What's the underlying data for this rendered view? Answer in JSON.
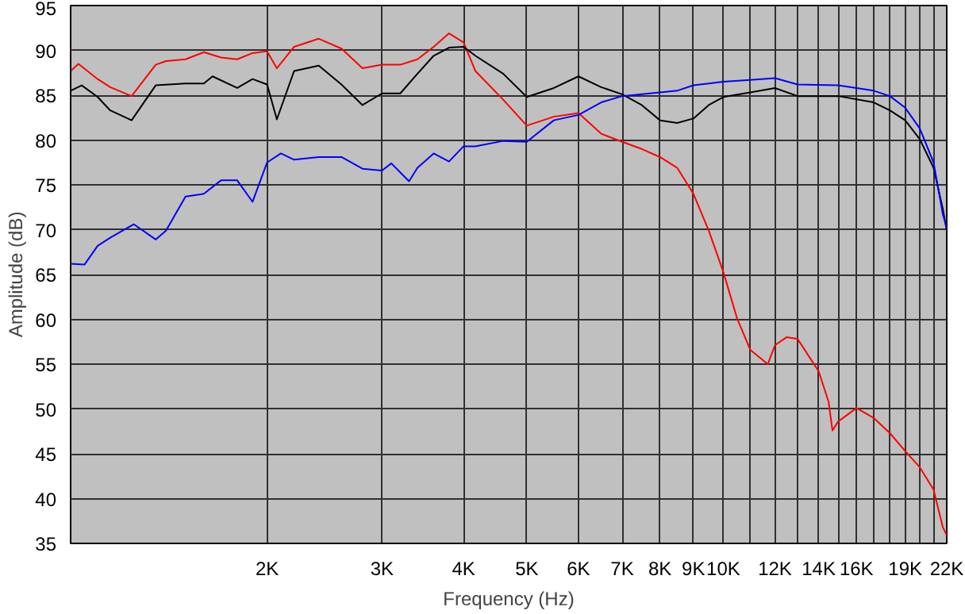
{
  "chart_data": {
    "type": "line",
    "xlabel": "Frequency (Hz)",
    "ylabel": "Amplitude (dB)",
    "log": "x",
    "xlim": [
      1000,
      22000
    ],
    "ylim": [
      35,
      95
    ],
    "xticks": [
      {
        "value": 2000,
        "label": "2K"
      },
      {
        "value": 3000,
        "label": "3K"
      },
      {
        "value": 4000,
        "label": "4K"
      },
      {
        "value": 5000,
        "label": "5K"
      },
      {
        "value": 6000,
        "label": "6K"
      },
      {
        "value": 7000,
        "label": "7K"
      },
      {
        "value": 8000,
        "label": "8K"
      },
      {
        "value": 9000,
        "label": "9K"
      },
      {
        "value": 10000,
        "label": "10K"
      },
      {
        "value": 11000,
        "label": null
      },
      {
        "value": 12000,
        "label": "12K"
      },
      {
        "value": 13000,
        "label": null
      },
      {
        "value": 14000,
        "label": "14K"
      },
      {
        "value": 15000,
        "label": null
      },
      {
        "value": 16000,
        "label": "16K"
      },
      {
        "value": 17000,
        "label": null
      },
      {
        "value": 18000,
        "label": null
      },
      {
        "value": 19000,
        "label": "19K"
      },
      {
        "value": 20000,
        "label": null
      },
      {
        "value": 21000,
        "label": null
      },
      {
        "value": 22000,
        "label": "22K"
      }
    ],
    "yticks": [
      35,
      40,
      45,
      50,
      55,
      60,
      65,
      70,
      75,
      80,
      85,
      90,
      95
    ],
    "grid": true,
    "marker": "none",
    "line_style": "solid",
    "series": [
      {
        "color": "#ff0000",
        "x": [
          1000,
          1028,
          1100,
          1150,
          1240,
          1350,
          1400,
          1500,
          1600,
          1700,
          1800,
          1900,
          2000,
          2070,
          2200,
          2400,
          2600,
          2800,
          3000,
          3200,
          3400,
          3600,
          3800,
          4000,
          4170,
          4600,
          5000,
          5500,
          6000,
          6500,
          7000,
          7500,
          8000,
          8500,
          9000,
          9500,
          10000,
          10500,
          11000,
          11700,
          12000,
          12500,
          13000,
          14000,
          14500,
          14700,
          15000,
          16000,
          17000,
          18000,
          19000,
          20000,
          21000,
          21700,
          22000
        ],
        "values": [
          87.7,
          88.5,
          86.8,
          85.9,
          84.9,
          88.4,
          88.8,
          89.0,
          89.8,
          89.2,
          89.0,
          89.7,
          89.9,
          88.0,
          90.4,
          91.3,
          90.2,
          88.0,
          88.4,
          88.4,
          89.0,
          90.4,
          91.9,
          90.9,
          87.7,
          84.5,
          81.6,
          82.6,
          83.0,
          80.7,
          79.8,
          79.0,
          78.1,
          76.9,
          74.0,
          69.9,
          65.3,
          60.1,
          56.6,
          55.0,
          57.1,
          58.0,
          57.8,
          54.2,
          50.8,
          47.6,
          48.6,
          50.1,
          49.0,
          47.3,
          45.3,
          43.5,
          41.0,
          36.8,
          35.9
        ]
      },
      {
        "color": "#000000",
        "x": [
          1000,
          1040,
          1100,
          1150,
          1240,
          1350,
          1500,
          1600,
          1650,
          1800,
          1900,
          2000,
          2070,
          2200,
          2400,
          2600,
          2800,
          3000,
          3200,
          3400,
          3600,
          3800,
          4000,
          4170,
          4600,
          5000,
          5500,
          6000,
          6500,
          7000,
          7500,
          8000,
          8500,
          9000,
          9500,
          10000,
          11000,
          12000,
          13000,
          15000,
          17000,
          18000,
          19000,
          20000,
          21000,
          21700,
          22000
        ],
        "values": [
          85.5,
          86.1,
          84.8,
          83.3,
          82.2,
          86.1,
          86.3,
          86.3,
          87.1,
          85.8,
          86.8,
          86.2,
          82.3,
          87.7,
          88.3,
          86.2,
          83.9,
          85.2,
          85.2,
          87.4,
          89.4,
          90.3,
          90.4,
          89.4,
          87.4,
          84.8,
          85.8,
          87.1,
          85.9,
          85.1,
          83.9,
          82.2,
          81.9,
          82.4,
          83.9,
          84.8,
          85.3,
          85.8,
          84.9,
          84.9,
          84.2,
          83.3,
          82.2,
          80.1,
          76.9,
          72.3,
          69.9
        ]
      },
      {
        "color": "#0000ff",
        "x": [
          1000,
          1050,
          1100,
          1150,
          1250,
          1350,
          1400,
          1500,
          1600,
          1700,
          1800,
          1900,
          2000,
          2100,
          2200,
          2400,
          2600,
          2800,
          3000,
          3100,
          3300,
          3400,
          3600,
          3800,
          4000,
          4170,
          4600,
          5000,
          5500,
          6000,
          6500,
          7000,
          7500,
          8000,
          8500,
          9000,
          9500,
          10000,
          11000,
          12000,
          13000,
          15000,
          17000,
          18000,
          19000,
          20000,
          21000,
          21700,
          22000
        ],
        "values": [
          66.2,
          66.1,
          68.2,
          69.1,
          70.6,
          68.9,
          69.9,
          73.7,
          74.0,
          75.5,
          75.5,
          73.1,
          77.5,
          78.5,
          77.8,
          78.1,
          78.1,
          76.8,
          76.6,
          77.4,
          75.4,
          76.9,
          78.5,
          77.6,
          79.3,
          79.3,
          79.9,
          79.8,
          82.2,
          82.8,
          84.2,
          84.9,
          85.1,
          85.3,
          85.5,
          86.1,
          86.3,
          86.5,
          86.7,
          86.9,
          86.2,
          86.1,
          85.5,
          84.9,
          83.6,
          81.3,
          77.5,
          71.7,
          70.2
        ]
      }
    ]
  }
}
